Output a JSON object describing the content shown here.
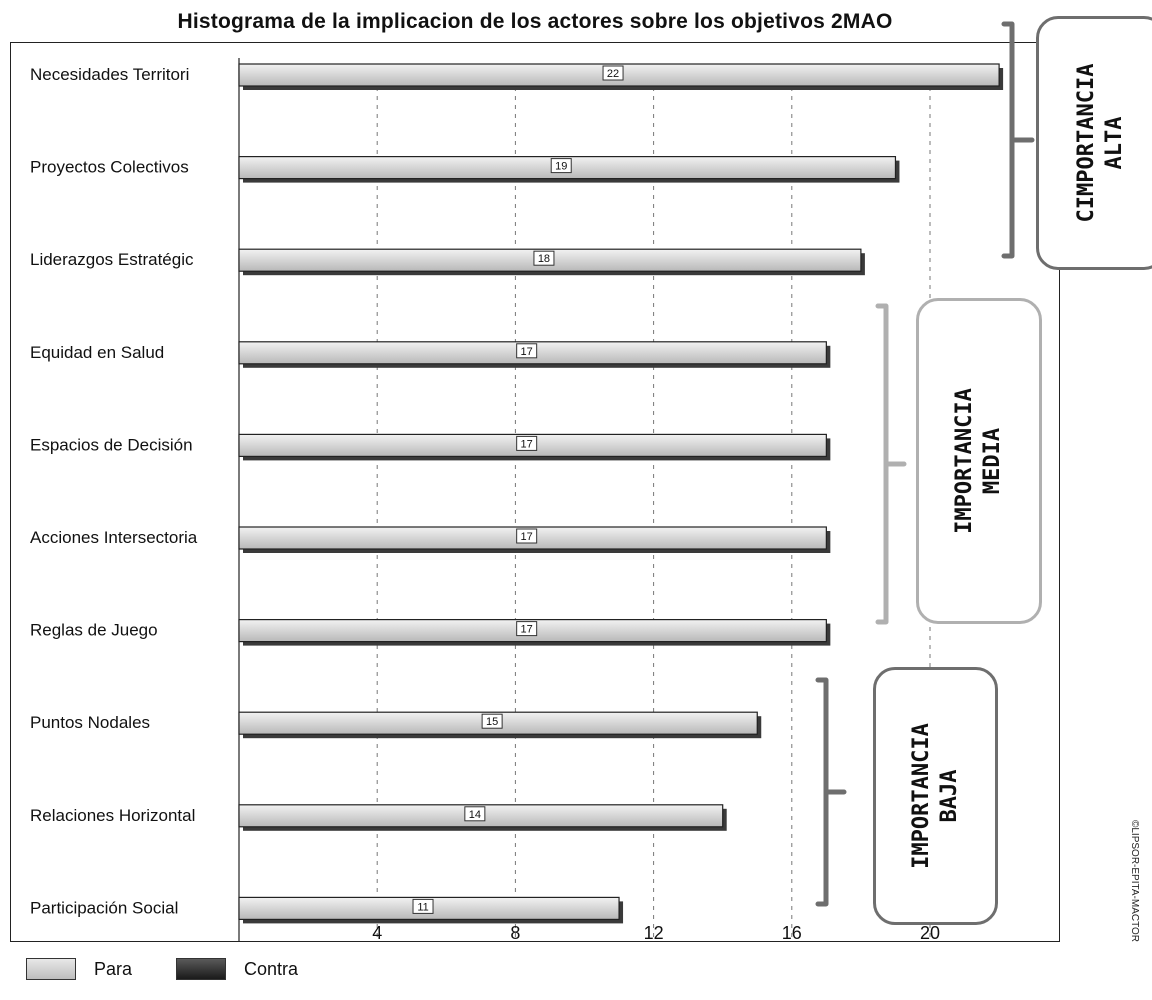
{
  "chart_data": {
    "type": "bar",
    "orientation": "horizontal",
    "title": "Histograma de la implicacion de los actores sobre los objetivos 2MAO",
    "categories": [
      "Necesidades Territori",
      "Proyectos Colectivos",
      "Liderazgos Estratégic",
      "Equidad en Salud",
      "Espacios de Decisión",
      "Acciones Intersectoria",
      "Reglas de Juego",
      "Puntos Nodales",
      "Relaciones Horizontal",
      "Participación Social"
    ],
    "series": [
      {
        "name": "Para",
        "values": [
          22,
          19,
          18,
          17,
          17,
          17,
          17,
          15,
          14,
          11
        ],
        "color": "#d6d6d6"
      },
      {
        "name": "Contra",
        "values": [
          0,
          0,
          0,
          0,
          0,
          0,
          0,
          0,
          0,
          0
        ],
        "color": "#2a2a2a"
      }
    ],
    "xticks": [
      "4",
      "8",
      "12",
      "16",
      "20"
    ],
    "xlim": [
      0,
      22
    ],
    "grid": "vertical dashed",
    "legend": "bottom-left"
  },
  "legend": {
    "para": "Para",
    "contra": "Contra"
  },
  "annotations": {
    "alta": "CIMPORTANCIA\nALTA",
    "media": "IMPORTANCIA\nMEDIA",
    "baja": "IMPORTANCIA\nBAJA"
  },
  "copyright": "©LIPSOR-EPITA-MACTOR",
  "colors": {
    "bracket_dark": "#6e6e6e",
    "bracket_light": "#b0b0b0"
  }
}
